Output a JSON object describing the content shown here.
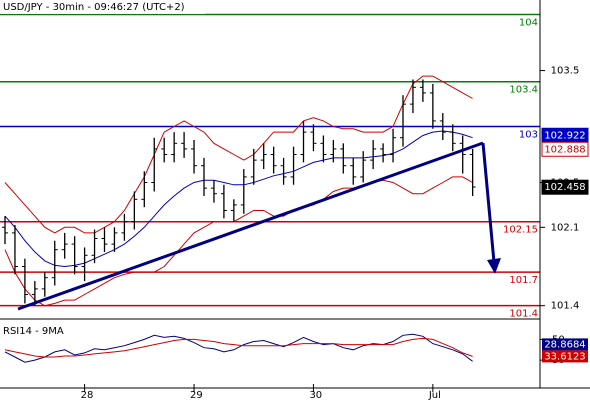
{
  "chart_data": {
    "type": "ohlc",
    "title": "USD/JPY - 30min - 09:46:27 (UTC+2)",
    "categories": [
      null,
      null,
      null,
      null,
      null,
      null,
      null,
      null,
      "28",
      null,
      null,
      null,
      null,
      null,
      null,
      null,
      null,
      null,
      null,
      "29",
      null,
      null,
      null,
      null,
      null,
      null,
      null,
      null,
      null,
      null,
      null,
      "30",
      null,
      null,
      null,
      null,
      null,
      null,
      null,
      null,
      null,
      null,
      null,
      "Jul",
      null,
      null,
      null,
      null
    ],
    "open": [
      102.1,
      102.05,
      101.75,
      101.5,
      101.55,
      101.65,
      101.9,
      101.95,
      101.75,
      101.85,
      102.0,
      101.95,
      102.05,
      102.15,
      102.35,
      102.5,
      102.8,
      102.75,
      102.85,
      102.8,
      102.65,
      102.45,
      102.4,
      102.25,
      102.3,
      102.55,
      102.7,
      102.75,
      102.65,
      102.55,
      102.75,
      102.95,
      102.85,
      102.75,
      102.8,
      102.65,
      102.55,
      102.7,
      102.8,
      102.75,
      102.9,
      103.2,
      103.35,
      103.3,
      103.05,
      102.95,
      102.85,
      102.75
    ],
    "high": [
      102.2,
      102.12,
      101.82,
      101.62,
      101.7,
      101.98,
      102.05,
      102.02,
      101.92,
      102.08,
      102.1,
      102.1,
      102.22,
      102.42,
      102.6,
      102.9,
      102.9,
      102.95,
      102.95,
      102.88,
      102.72,
      102.52,
      102.48,
      102.35,
      102.62,
      102.8,
      102.85,
      102.82,
      102.72,
      102.82,
      103.05,
      103.02,
      102.92,
      102.88,
      102.85,
      102.72,
      102.78,
      102.88,
      102.85,
      102.98,
      103.28,
      103.42,
      103.42,
      103.38,
      103.12,
      103.02,
      102.92,
      102.8
    ],
    "low": [
      101.95,
      101.68,
      101.42,
      101.4,
      101.48,
      101.58,
      101.82,
      101.68,
      101.62,
      101.78,
      101.88,
      101.88,
      101.98,
      102.08,
      102.28,
      102.42,
      102.68,
      102.68,
      102.72,
      102.58,
      102.38,
      102.32,
      102.18,
      102.15,
      102.22,
      102.48,
      102.62,
      102.58,
      102.48,
      102.48,
      102.68,
      102.78,
      102.68,
      102.68,
      102.58,
      102.48,
      102.5,
      102.62,
      102.68,
      102.68,
      102.82,
      103.12,
      103.22,
      102.98,
      102.88,
      102.78,
      102.58,
      102.38
    ],
    "close": [
      102.05,
      101.75,
      101.5,
      101.55,
      101.65,
      101.9,
      101.95,
      101.75,
      101.85,
      102.0,
      101.95,
      102.05,
      102.15,
      102.35,
      102.5,
      102.8,
      102.75,
      102.85,
      102.8,
      102.65,
      102.45,
      102.4,
      102.25,
      102.3,
      102.55,
      102.7,
      102.75,
      102.65,
      102.55,
      102.75,
      102.95,
      102.85,
      102.75,
      102.8,
      102.65,
      102.55,
      102.7,
      102.8,
      102.75,
      102.9,
      103.2,
      103.35,
      103.3,
      103.05,
      102.95,
      102.85,
      102.75,
      102.46
    ],
    "overlays": [
      {
        "color": "#d00000",
        "values": [
          102.5,
          102.4,
          102.3,
          102.2,
          102.1,
          102.05,
          102.1,
          102.1,
          102.05,
          102.05,
          102.1,
          102.15,
          102.25,
          102.4,
          102.55,
          102.75,
          102.95,
          103.0,
          103.05,
          103.0,
          102.95,
          102.85,
          102.8,
          102.75,
          102.7,
          102.75,
          102.85,
          102.95,
          102.95,
          102.95,
          103.05,
          103.08,
          103.05,
          103.0,
          102.98,
          102.98,
          102.95,
          102.95,
          102.95,
          103.0,
          103.2,
          103.38,
          103.45,
          103.45,
          103.4,
          103.35,
          103.3,
          103.25
        ]
      },
      {
        "color": "#0000c0",
        "values": [
          102.2,
          102.1,
          101.98,
          101.88,
          101.8,
          101.76,
          101.75,
          101.76,
          101.78,
          101.82,
          101.86,
          101.9,
          101.95,
          102.02,
          102.1,
          102.2,
          102.3,
          102.38,
          102.45,
          102.5,
          102.52,
          102.52,
          102.5,
          102.48,
          102.48,
          102.5,
          102.53,
          102.56,
          102.58,
          102.6,
          102.64,
          102.68,
          102.7,
          102.72,
          102.72,
          102.72,
          102.72,
          102.73,
          102.74,
          102.76,
          102.8,
          102.86,
          102.92,
          102.95,
          102.96,
          102.95,
          102.93,
          102.9
        ]
      },
      {
        "color": "#d00000",
        "values": [
          101.9,
          101.7,
          101.55,
          101.45,
          101.4,
          101.42,
          101.45,
          101.45,
          101.5,
          101.55,
          101.6,
          101.65,
          101.68,
          101.7,
          101.7,
          101.7,
          101.75,
          101.85,
          101.95,
          102.05,
          102.1,
          102.15,
          102.15,
          102.15,
          102.2,
          102.25,
          102.25,
          102.2,
          102.2,
          102.25,
          102.28,
          102.3,
          102.35,
          102.42,
          102.45,
          102.45,
          102.48,
          102.5,
          102.52,
          102.5,
          102.45,
          102.4,
          102.4,
          102.45,
          102.5,
          102.55,
          102.55,
          102.5
        ]
      }
    ],
    "levels": [
      {
        "value": 104,
        "color": "#008000"
      },
      {
        "value": 103.4,
        "color": "#008000"
      },
      {
        "value": 103,
        "color": "#0000c0"
      },
      {
        "value": 102.15,
        "color": "#d00000"
      },
      {
        "value": 101.7,
        "color": "#d00000"
      },
      {
        "value": 101.4,
        "color": "#d00000"
      }
    ],
    "price_tags": [
      {
        "value": 102.922,
        "color": "#0000c0",
        "filled": true
      },
      {
        "value": 102.888,
        "color": "#d00000",
        "filled": false
      },
      {
        "value": 102.458,
        "color": "#000000",
        "filled": true
      }
    ],
    "ylim": [
      101.29,
      104.13
    ],
    "yticks": [
      103.5,
      102.5,
      102.1,
      101.4
    ],
    "rsi": {
      "title": "RSI14 - 9MA",
      "ylim": [
        5,
        63
      ],
      "yticks": [
        50,
        30
      ],
      "series": [
        {
          "color": "#000080",
          "values": [
            38,
            33,
            28,
            30,
            33,
            38,
            40,
            35,
            37,
            41,
            40,
            42,
            44,
            47,
            50,
            54,
            52,
            53,
            51,
            47,
            42,
            41,
            38,
            40,
            45,
            48,
            49,
            46,
            43,
            47,
            52,
            48,
            45,
            46,
            42,
            40,
            44,
            46,
            45,
            48,
            54,
            55,
            53,
            46,
            43,
            40,
            36,
            28.8684
          ]
        },
        {
          "color": "#d00000",
          "values": [
            40,
            38,
            36,
            34,
            33,
            33,
            34,
            34,
            35,
            36,
            37,
            38,
            39,
            41,
            43,
            45,
            47,
            49,
            50,
            50,
            49,
            48,
            46,
            45,
            44,
            44,
            44,
            44,
            44,
            45,
            46,
            46,
            46,
            46,
            45,
            45,
            45,
            45,
            45,
            45,
            48,
            50,
            51,
            50,
            46,
            42,
            37,
            33.6123
          ]
        }
      ]
    }
  }
}
